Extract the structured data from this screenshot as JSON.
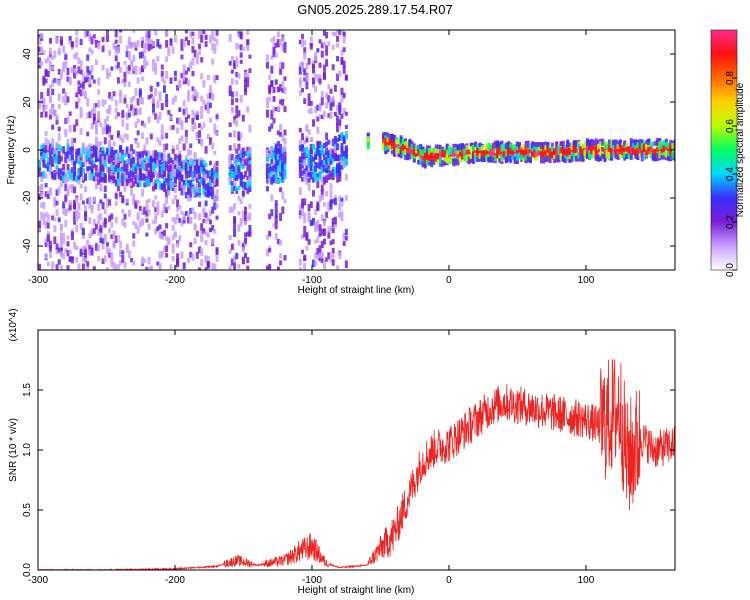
{
  "title": "GN05.2025.289.17.54.R07",
  "chart_data": [
    {
      "type": "heatmap",
      "xlabel": "Height of straight line (km)",
      "ylabel": "Frequency (Hz)",
      "xlim": [
        -300,
        165
      ],
      "ylim": [
        -50,
        50
      ],
      "xticks": [
        -300,
        -200,
        -100,
        0,
        100
      ],
      "yticks": [
        -40,
        -20,
        0,
        20,
        40
      ],
      "colorbar": {
        "label": "Normalized spectral amplitude",
        "range": [
          0.0,
          1.0
        ],
        "ticks": [
          0.0,
          0.2,
          0.4,
          0.6,
          0.8
        ],
        "colors": [
          "#ffffff",
          "#c8a0ff",
          "#7a1fd6",
          "#3b2bff",
          "#00d7ff",
          "#00ff60",
          "#b8ff00",
          "#ffd200",
          "#ff6a00",
          "#ff1010",
          "#ff2a8a"
        ]
      },
      "ridge": {
        "description_points_x": [
          -300,
          -260,
          -220,
          -180,
          -160,
          -140,
          -120,
          -100,
          -85,
          -75,
          -60,
          -45,
          -30,
          -20,
          0,
          20,
          40,
          60,
          80,
          100,
          120,
          140,
          165
        ],
        "description_points_y": [
          -5,
          -6,
          -8,
          -12,
          -10,
          -7,
          -6,
          -5,
          -3,
          1,
          3,
          3,
          0,
          -3,
          -2,
          -1,
          -1,
          -1,
          -1,
          0,
          0,
          0,
          0
        ]
      },
      "gaps_x": [
        [
          -75,
          -50
        ],
        [
          -120,
          -110
        ],
        [
          -170,
          -162
        ],
        [
          -145,
          -135
        ]
      ]
    },
    {
      "type": "line",
      "xlabel": "Height of straight line (km)",
      "ylabel": "SNR (10 * v/v)",
      "y_multiplier": "(x10^4)",
      "xlim": [
        -300,
        165
      ],
      "ylim": [
        0,
        2.0
      ],
      "xticks": [
        -300,
        -200,
        -100,
        0,
        100
      ],
      "yticks": [
        0.0,
        0.5,
        1.0,
        1.5
      ],
      "color": "#ee2222",
      "series": [
        {
          "x": [
            -300,
            -250,
            -200,
            -170,
            -155,
            -140,
            -120,
            -110,
            -100,
            -90,
            -80,
            -60,
            -50,
            -40,
            -30,
            -25,
            -20,
            -10,
            0,
            10,
            20,
            30,
            40,
            60,
            80,
            100,
            110,
            120,
            125,
            130,
            140,
            150,
            165
          ],
          "y": [
            0.0,
            0.0,
            0.01,
            0.03,
            0.08,
            0.04,
            0.08,
            0.15,
            0.2,
            0.06,
            0.02,
            0.04,
            0.18,
            0.3,
            0.6,
            0.75,
            0.9,
            1.02,
            1.05,
            1.15,
            1.25,
            1.35,
            1.4,
            1.35,
            1.3,
            1.25,
            1.2,
            1.3,
            1.35,
            0.9,
            1.1,
            1.0,
            1.05
          ]
        }
      ]
    }
  ]
}
